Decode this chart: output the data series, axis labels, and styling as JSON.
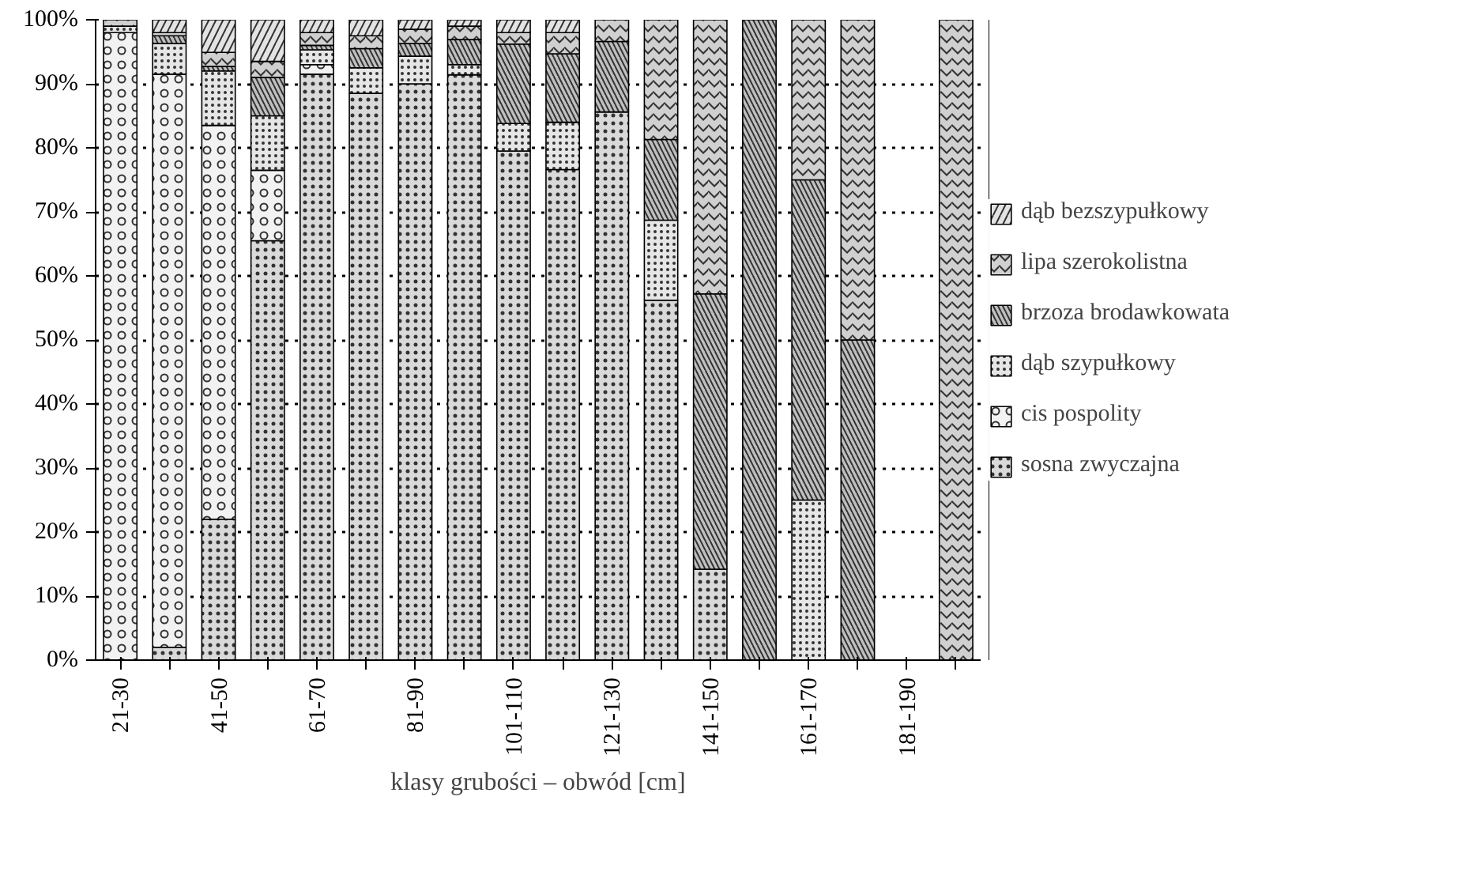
{
  "chart_data": {
    "type": "bar",
    "stacked": true,
    "xlabel": "klasy grubości – obwód [cm]",
    "categories": [
      "21-30",
      null,
      "41-50",
      null,
      "61-70",
      null,
      "81-90",
      null,
      "101-110",
      null,
      "121-130",
      null,
      "141-150",
      null,
      "161-170",
      null,
      "181-190",
      null
    ],
    "series": [
      {
        "name": "sosna zwyczajna",
        "color": "#d9d9d9",
        "values": [
          0,
          2,
          22,
          65.5,
          91.5,
          88.5,
          90,
          91.4,
          79.5,
          76.6,
          85.6,
          56.2,
          14.2,
          0,
          0,
          0,
          0,
          0
        ]
      },
      {
        "name": "cis pospolity",
        "color": "#f2f2f2",
        "values": [
          98,
          89.5,
          61.5,
          11,
          1.5,
          0,
          0,
          0,
          0,
          0,
          0,
          0,
          0,
          0,
          0,
          0,
          0,
          0
        ]
      },
      {
        "name": "dąb szypułkowy",
        "color": "#e6e6e6",
        "values": [
          1,
          4.8,
          8.5,
          8.5,
          2.3,
          4,
          4.3,
          1.6,
          4.3,
          7.4,
          0,
          12.5,
          0,
          0,
          25,
          0,
          0,
          0
        ]
      },
      {
        "name": "brzoza brodawkowata",
        "color": "#bfbfbf",
        "values": [
          0,
          1.2,
          0.7,
          6,
          0.7,
          3,
          2,
          3.9,
          12.4,
          10.7,
          11,
          12.6,
          43,
          100,
          50,
          50,
          0,
          0
        ]
      },
      {
        "name": "lipa szerokolistna",
        "color": "#d0d0d0",
        "values": [
          1,
          0.5,
          2.2,
          2.5,
          2,
          2,
          2.2,
          2.1,
          1.8,
          3.3,
          3.4,
          18.7,
          42.8,
          0,
          25,
          50,
          0,
          100
        ]
      },
      {
        "name": "dąb bezszypułkowy",
        "color": "#e3e3e3",
        "values": [
          0,
          2,
          5.1,
          6.5,
          2,
          2.5,
          1.5,
          1,
          2,
          2,
          0,
          0,
          0,
          0,
          0,
          0,
          0,
          0
        ]
      }
    ],
    "ylim": [
      0,
      100
    ],
    "yticks": [
      {
        "value": 0,
        "label": "0%"
      },
      {
        "value": 10,
        "label": "10%"
      },
      {
        "value": 20,
        "label": "20%"
      },
      {
        "value": 30,
        "label": "30%"
      },
      {
        "value": 40,
        "label": "40%"
      },
      {
        "value": 50,
        "label": "50%"
      },
      {
        "value": 60,
        "label": "60%"
      },
      {
        "value": 70,
        "label": "70%"
      },
      {
        "value": 80,
        "label": "80%"
      },
      {
        "value": 90,
        "label": "90%"
      },
      {
        "value": 100,
        "label": "100%"
      }
    ],
    "grid": "y",
    "legend": "right"
  }
}
